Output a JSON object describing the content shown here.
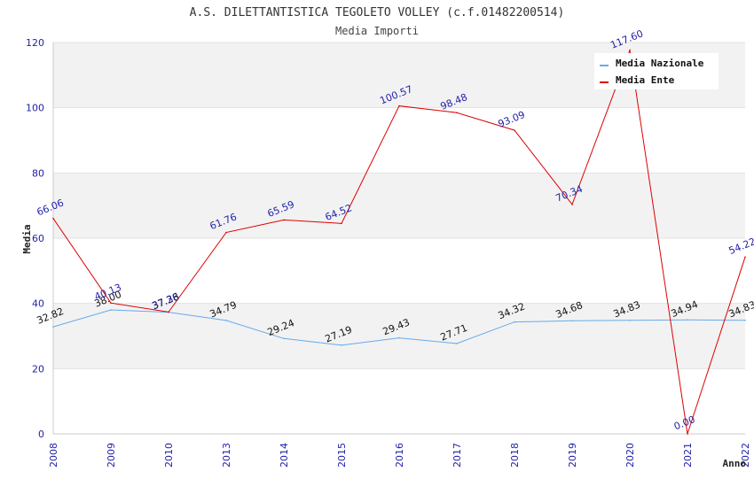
{
  "chart_data": {
    "type": "line",
    "title": "A.S. DILETTANTISTICA TEGOLETO VOLLEY (c.f.01482200514)",
    "subtitle": "Media Importi",
    "xlabel": "Anno",
    "ylabel": "Media",
    "categories": [
      "2008",
      "2009",
      "2010",
      "2013",
      "2014",
      "2015",
      "2016",
      "2017",
      "2018",
      "2019",
      "2020",
      "2021",
      "2022"
    ],
    "ylim": [
      0,
      120
    ],
    "yticks": [
      0,
      20,
      40,
      60,
      80,
      100,
      120
    ],
    "grid": true,
    "legend_position": "top-right",
    "series": [
      {
        "name": "Media Nazionale",
        "color": "#66aaee",
        "label_color": "#111111",
        "values": [
          32.82,
          38.0,
          37.28,
          34.79,
          29.24,
          27.19,
          29.43,
          27.71,
          34.32,
          34.68,
          34.83,
          34.94,
          34.83
        ],
        "labels": [
          "32.82",
          "38.00",
          "37.28",
          "34.79",
          "29.24",
          "27.19",
          "29.43",
          "27.71",
          "34.32",
          "34.68",
          "34.83",
          "34.94",
          "34.83"
        ]
      },
      {
        "name": "Media Ente",
        "color": "#dd0000",
        "label_color": "#1f1fa8",
        "values": [
          66.06,
          40.13,
          37.36,
          61.76,
          65.59,
          64.52,
          100.57,
          98.48,
          93.09,
          70.34,
          117.6,
          0.0,
          54.22
        ],
        "labels": [
          "66.06",
          "40.13",
          "37.36",
          "61.76",
          "65.59",
          "64.52",
          "100.57",
          "98.48",
          "93.09",
          "70.34",
          "117.60",
          "0.00",
          "54.22"
        ]
      }
    ]
  }
}
